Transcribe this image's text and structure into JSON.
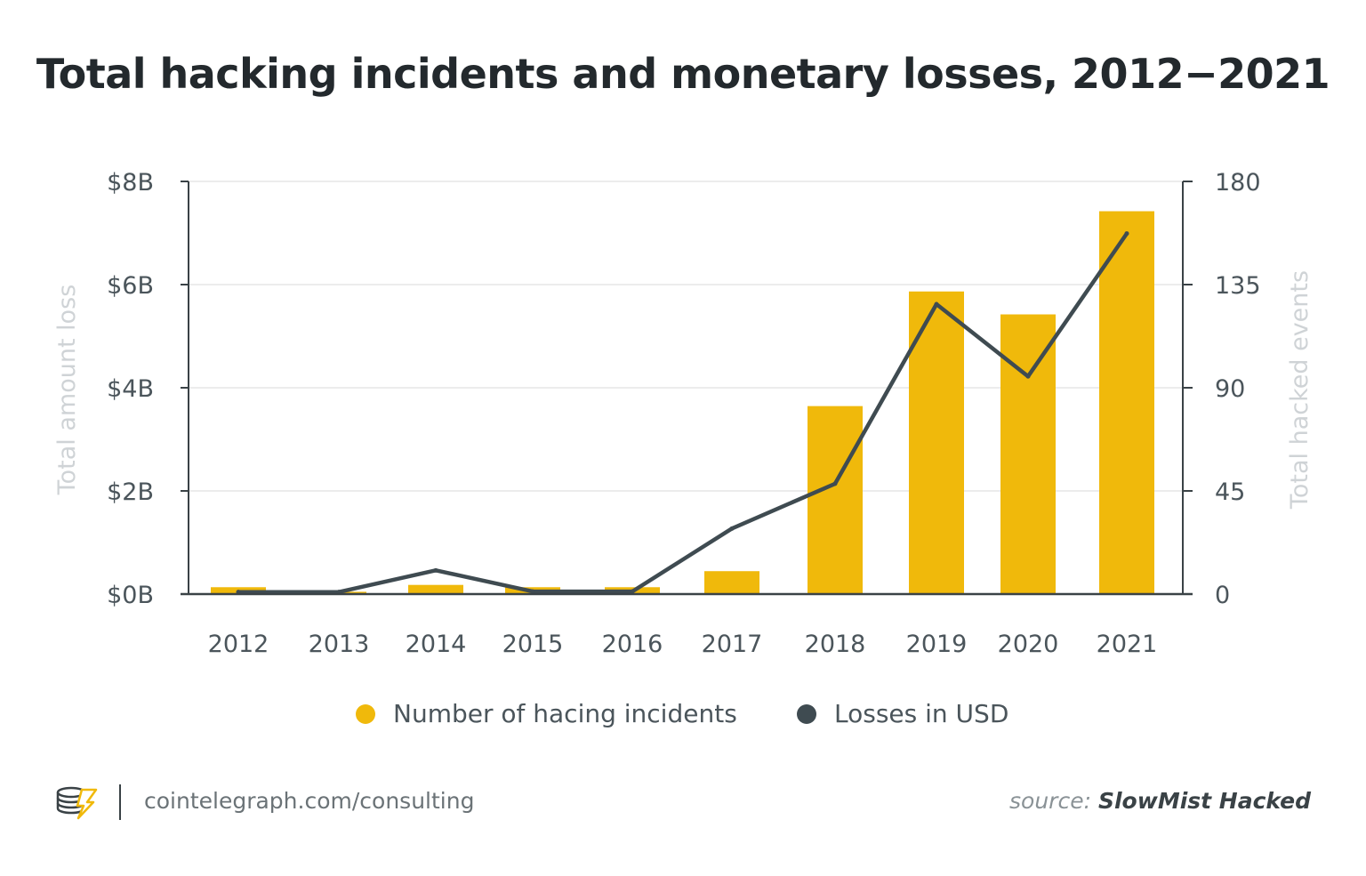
{
  "title": "Total hacking incidents and monetary losses, 2012−2021",
  "colors": {
    "bars": "#f0b90b",
    "line": "#3f4b51",
    "grid": "#e6e6e6",
    "axis": "#3a4246"
  },
  "chart_data": {
    "type": "bar+line",
    "categories": [
      "2012",
      "2013",
      "2014",
      "2015",
      "2016",
      "2017",
      "2018",
      "2019",
      "2020",
      "2021"
    ],
    "series": [
      {
        "name": "Number of hacing incidents",
        "type": "bar",
        "axis": "right",
        "values": [
          3,
          1,
          4,
          3,
          3,
          10,
          82,
          132,
          122,
          167
        ]
      },
      {
        "name": "Losses in USD",
        "type": "line",
        "axis": "left",
        "values": [
          0.04,
          0.04,
          0.46,
          0.05,
          0.05,
          1.27,
          2.14,
          5.62,
          4.22,
          6.99
        ]
      }
    ],
    "y_left": {
      "label": "Total amount loss",
      "ticks": [
        "$0B",
        "$2B",
        "$4B",
        "$6B",
        "$8B"
      ],
      "ylim": [
        0,
        8
      ]
    },
    "y_right": {
      "label": "Total hacked events",
      "ticks": [
        "0",
        "45",
        "90",
        "135",
        "180"
      ],
      "ylim": [
        0,
        180
      ]
    },
    "grid": true,
    "legend_position": "bottom"
  },
  "footer": {
    "site": "cointelegraph.com/consulting",
    "source_prefix": "source: ",
    "source_name": "SlowMist Hacked"
  }
}
